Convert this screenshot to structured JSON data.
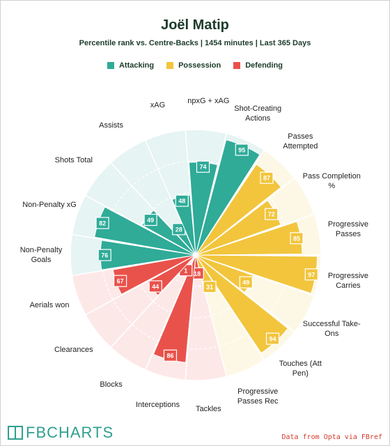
{
  "chart_data": {
    "type": "polar_bar",
    "title": "Joël Matip",
    "subtitle": "Percentile rank vs. Centre-Backs | 1454 minutes | Last 365 Days",
    "rlim": [
      0,
      100
    ],
    "grid": true,
    "series": [
      {
        "name": "Attacking",
        "color": "#2fab98",
        "background": "#e6f4f3",
        "categories": [
          "Non-Penalty Goals",
          "Non-Penalty xG",
          "Shots Total",
          "Assists",
          "xAG",
          "npxG + xAG",
          "Shot-Creating Actions"
        ],
        "values": [
          76,
          82,
          49,
          28,
          48,
          74,
          95
        ]
      },
      {
        "name": "Possession",
        "color": "#f2c53d",
        "background": "#fdf8e6",
        "categories": [
          "Passes Attempted",
          "Pass Completion %",
          "Progressive Passes",
          "Progressive Carries",
          "Successful Take-Ons",
          "Touches (Att Pen)",
          "Progressive Passes Rec"
        ],
        "values": [
          87,
          72,
          85,
          97,
          49,
          94,
          31
        ]
      },
      {
        "name": "Defending",
        "color": "#e9524b",
        "background": "#fde8e8",
        "categories": [
          "Tackles",
          "Interceptions",
          "Blocks",
          "Clearances",
          "Aerials won"
        ],
        "values": [
          18,
          86,
          1,
          44,
          67
        ]
      }
    ]
  },
  "footer": {
    "logo": "FBCHARTS",
    "source": "Data from Opta via FBref"
  }
}
